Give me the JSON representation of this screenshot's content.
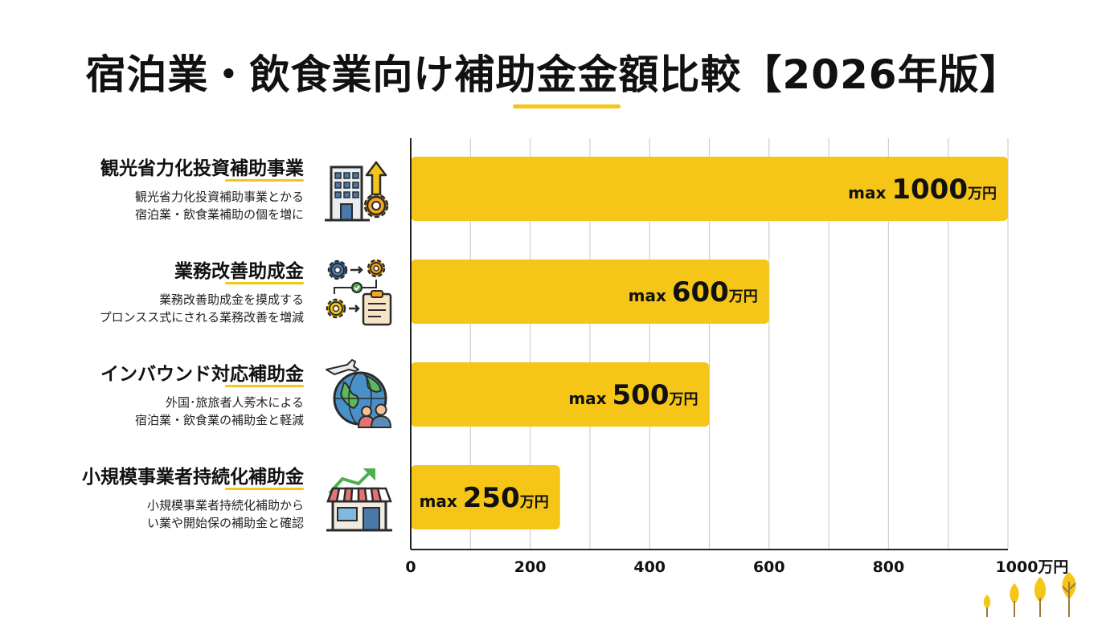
{
  "title": "宿泊業・飲食業向け補助金金額比較【2026年版】",
  "colors": {
    "accent": "#F5C518",
    "text": "#111111",
    "grid": "#CFCFCF"
  },
  "items": [
    {
      "name": "観光省力化投資補助事業",
      "desc": [
        "観光省力化投資補助事業とかる",
        "宿泊業・飲食業補助の個を増に"
      ],
      "icon": "building-gear-arrow-icon"
    },
    {
      "name": "業務改善助成金",
      "desc": [
        "業務改善助成金を摸成する",
        "プロンスス式にされる業務改善を増減"
      ],
      "icon": "gears-clipboard-icon"
    },
    {
      "name": "インバウンド対応補助金",
      "desc": [
        "外国･旅旅者人莠木による",
        "宿泊業・飲食業の補助金と軽減"
      ],
      "icon": "globe-plane-people-icon"
    },
    {
      "name": "小規模事業者持続化補助金",
      "desc": [
        "小規模事業者持続化補助から",
        "い業や開始保の補助金と確認"
      ],
      "icon": "storefront-growth-icon"
    }
  ],
  "chart_data": {
    "type": "bar",
    "orientation": "horizontal",
    "categories": [
      "観光省力化投資補助事業",
      "業務改善助成金",
      "インバウンド対応補助金",
      "小規模事業者持続化補助金"
    ],
    "values": [
      1000,
      600,
      500,
      250
    ],
    "value_prefix": "max ",
    "value_unit": "万円",
    "xlim": [
      0,
      1000
    ],
    "x_ticks": [
      "0",
      "200",
      "400",
      "600",
      "800",
      "1000万円"
    ],
    "x_tick_values": [
      0,
      200,
      400,
      600,
      800,
      1000
    ],
    "grid": true,
    "legend": "none"
  }
}
